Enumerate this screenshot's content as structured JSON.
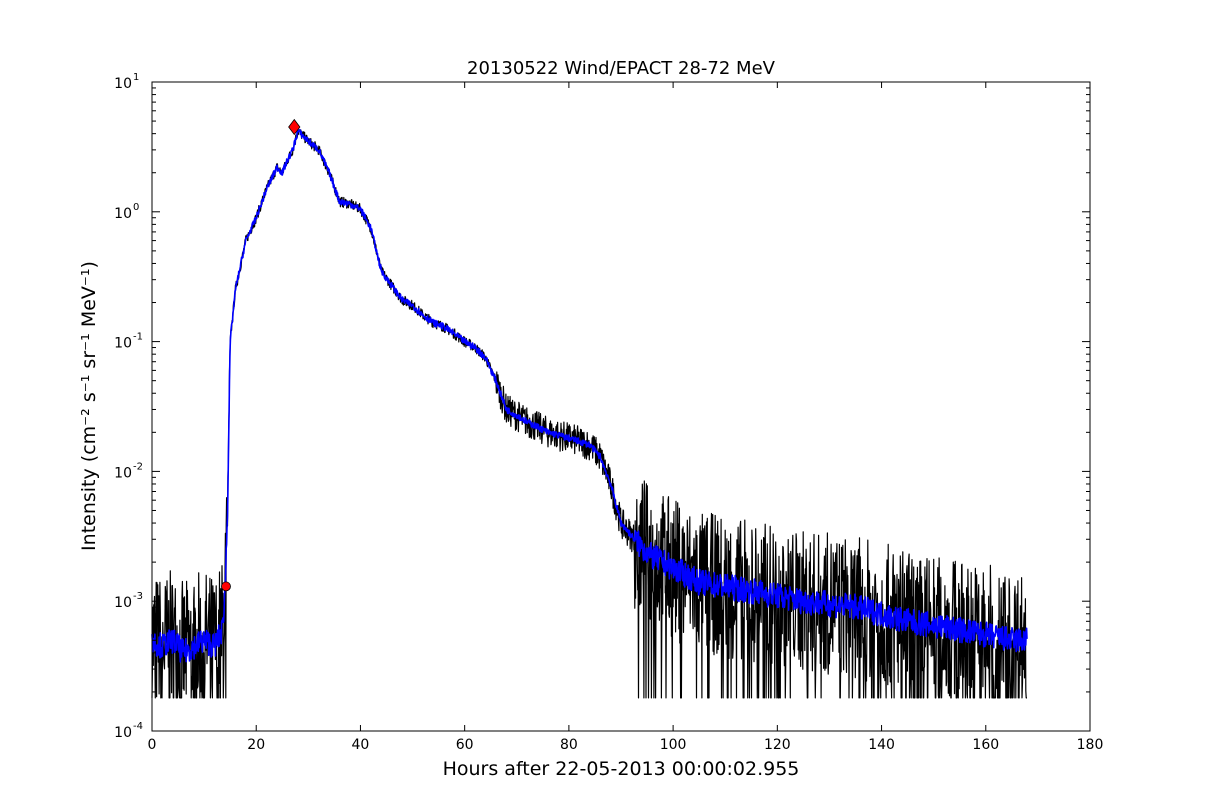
{
  "chart_data": {
    "type": "line",
    "title": "20130522 Wind/EPACT 28-72 MeV",
    "xlabel": "Hours after 22-05-2013 00:00:02.955",
    "ylabel": "Intensity (cm⁻² s⁻¹ sr⁻¹ MeV⁻¹)",
    "yscale": "log",
    "xlim": [
      0,
      180
    ],
    "ylim": [
      0.0001,
      10
    ],
    "grid": false,
    "legend": "none",
    "x_ticks": [
      "0",
      "20",
      "40",
      "60",
      "80",
      "100",
      "120",
      "140",
      "160",
      "180"
    ],
    "y_ticks": [
      {
        "base": "10",
        "exp": "-4"
      },
      {
        "base": "10",
        "exp": "-3"
      },
      {
        "base": "10",
        "exp": "-2"
      },
      {
        "base": "10",
        "exp": "-1"
      },
      {
        "base": "10",
        "exp": "0"
      },
      {
        "base": "10",
        "exp": "1"
      }
    ],
    "series": [
      {
        "role": "raw",
        "color": "#000000",
        "x": [
          0,
          2,
          4,
          6,
          8,
          10,
          12,
          13.5,
          14,
          14.5,
          15,
          16,
          18,
          20,
          22,
          24,
          25,
          26,
          27,
          28,
          30,
          32,
          34,
          36,
          38,
          40,
          42,
          44,
          46,
          48,
          50,
          52,
          54,
          56,
          58,
          60,
          62,
          64,
          66,
          68,
          70,
          72,
          74,
          76,
          78,
          80,
          82,
          84,
          86,
          88,
          90,
          92,
          94,
          96,
          98,
          100,
          105,
          110,
          115,
          120,
          125,
          130,
          135,
          140,
          145,
          150,
          155,
          160,
          165,
          168
        ],
        "values": [
          0.0005,
          0.00045,
          0.0005,
          0.0004,
          0.00045,
          0.0005,
          0.00045,
          0.0006,
          0.0012,
          0.005,
          0.1,
          0.25,
          0.6,
          0.9,
          1.5,
          2.2,
          2.0,
          2.5,
          3.0,
          4.2,
          3.5,
          3.0,
          2.0,
          1.2,
          1.15,
          1.05,
          0.75,
          0.35,
          0.27,
          0.21,
          0.19,
          0.16,
          0.14,
          0.13,
          0.115,
          0.1,
          0.09,
          0.075,
          0.05,
          0.03,
          0.027,
          0.024,
          0.022,
          0.02,
          0.019,
          0.018,
          0.017,
          0.016,
          0.013,
          0.008,
          0.004,
          0.0032,
          0.0026,
          0.0022,
          0.002,
          0.0018,
          0.0014,
          0.0013,
          0.0012,
          0.0011,
          0.001,
          0.00095,
          0.0009,
          0.0008,
          0.0007,
          0.00065,
          0.0006,
          0.00055,
          0.0005,
          0.0005
        ]
      },
      {
        "role": "smoothed",
        "color": "#0000ff",
        "x": [
          0,
          2,
          4,
          6,
          8,
          10,
          12,
          13.5,
          14,
          14.5,
          15,
          16,
          18,
          20,
          22,
          24,
          25,
          26,
          27,
          28,
          30,
          32,
          34,
          36,
          38,
          40,
          42,
          44,
          46,
          48,
          50,
          52,
          54,
          56,
          58,
          60,
          62,
          64,
          66,
          68,
          70,
          72,
          74,
          76,
          78,
          80,
          82,
          84,
          86,
          88,
          90,
          92,
          94,
          96,
          98,
          100,
          105,
          110,
          115,
          120,
          125,
          130,
          135,
          140,
          145,
          150,
          155,
          160,
          165,
          168
        ],
        "values": [
          0.0005,
          0.00045,
          0.0005,
          0.0004,
          0.00045,
          0.0005,
          0.00045,
          0.0006,
          0.0012,
          0.005,
          0.1,
          0.25,
          0.6,
          0.9,
          1.5,
          2.2,
          2.0,
          2.5,
          3.0,
          4.2,
          3.5,
          3.0,
          2.0,
          1.2,
          1.15,
          1.05,
          0.75,
          0.35,
          0.27,
          0.21,
          0.19,
          0.16,
          0.14,
          0.13,
          0.115,
          0.1,
          0.09,
          0.075,
          0.05,
          0.03,
          0.027,
          0.024,
          0.022,
          0.02,
          0.019,
          0.018,
          0.017,
          0.016,
          0.013,
          0.008,
          0.004,
          0.0032,
          0.0026,
          0.0022,
          0.002,
          0.0018,
          0.0014,
          0.0013,
          0.0012,
          0.0011,
          0.001,
          0.00095,
          0.0009,
          0.0008,
          0.0007,
          0.00065,
          0.0006,
          0.00055,
          0.0005,
          0.0005
        ]
      }
    ],
    "markers": [
      {
        "role": "onset",
        "x": 14.2,
        "y": 0.0013,
        "color": "#ff0000",
        "shape": "circle"
      },
      {
        "role": "peak",
        "x": 27.3,
        "y": 4.5,
        "color": "#ff0000",
        "shape": "diamond"
      }
    ]
  }
}
